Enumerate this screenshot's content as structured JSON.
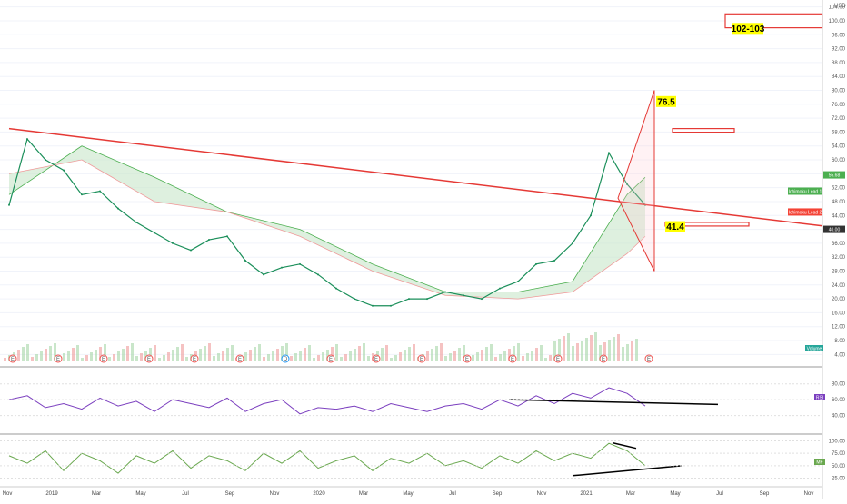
{
  "chart_data": {
    "type": "line",
    "currency": "USD",
    "price_axis": {
      "ticks": [
        "104.00",
        "100.00",
        "96.00",
        "92.00",
        "88.00",
        "84.00",
        "80.00",
        "76.00",
        "72.00",
        "68.00",
        "64.00",
        "60.00",
        "56.00",
        "52.00",
        "48.00",
        "44.00",
        "40.00",
        "36.00",
        "32.00",
        "28.00",
        "24.00",
        "20.00",
        "16.00",
        "12.00",
        "8.00",
        "4.00"
      ],
      "range": [
        2,
        106
      ]
    },
    "time_axis": [
      "Nov",
      "2019",
      "Mar",
      "May",
      "Jul",
      "Sep",
      "Nov",
      "2020",
      "Mar",
      "May",
      "Jul",
      "Sep",
      "Nov",
      "2021",
      "Mar",
      "May",
      "Jul",
      "Sep",
      "Nov"
    ],
    "price_series": {
      "name": "Price",
      "points": [
        [
          0,
          47
        ],
        [
          1,
          66
        ],
        [
          2,
          60
        ],
        [
          3,
          57
        ],
        [
          4,
          50
        ],
        [
          5,
          51
        ],
        [
          6,
          46
        ],
        [
          7,
          42
        ],
        [
          8,
          39
        ],
        [
          9,
          36
        ],
        [
          10,
          34
        ],
        [
          11,
          37
        ],
        [
          12,
          38
        ],
        [
          13,
          31
        ],
        [
          14,
          27
        ],
        [
          15,
          29
        ],
        [
          16,
          30
        ],
        [
          17,
          27
        ],
        [
          18,
          23
        ],
        [
          19,
          20
        ],
        [
          20,
          18
        ],
        [
          21,
          18
        ],
        [
          22,
          20
        ],
        [
          23,
          20
        ],
        [
          24,
          22
        ],
        [
          25,
          21
        ],
        [
          26,
          20
        ],
        [
          27,
          23
        ],
        [
          28,
          25
        ],
        [
          29,
          30
        ],
        [
          30,
          31
        ],
        [
          31,
          36
        ],
        [
          32,
          44
        ],
        [
          33,
          62
        ],
        [
          34,
          53
        ],
        [
          35,
          47
        ]
      ]
    },
    "trendline": {
      "name": "Trendline",
      "points": [
        [
          0,
          69
        ],
        [
          42,
          41
        ]
      ]
    },
    "cloud": {
      "lead1": [
        [
          0,
          50
        ],
        [
          4,
          64
        ],
        [
          8,
          55
        ],
        [
          12,
          45
        ],
        [
          16,
          40
        ],
        [
          20,
          30
        ],
        [
          24,
          22
        ],
        [
          28,
          22
        ],
        [
          31,
          25
        ],
        [
          34,
          50
        ],
        [
          35,
          55
        ]
      ],
      "lead2": [
        [
          0,
          56
        ],
        [
          4,
          60
        ],
        [
          8,
          48
        ],
        [
          12,
          45
        ],
        [
          16,
          38
        ],
        [
          20,
          28
        ],
        [
          24,
          21
        ],
        [
          28,
          20
        ],
        [
          31,
          22
        ],
        [
          34,
          33
        ],
        [
          35,
          38
        ]
      ]
    },
    "projection": {
      "apex": [
        33.5,
        49
      ],
      "top": [
        35.5,
        80
      ],
      "bottom": [
        35.5,
        28
      ]
    },
    "zones": [
      {
        "label": "102-103",
        "from": 102,
        "to": 98
      },
      {
        "label": "",
        "from": 69,
        "to": 68
      },
      {
        "label": "",
        "from": 42,
        "to": 41
      }
    ],
    "annotations": [
      {
        "label": "76.5",
        "x": 35.7,
        "y": 76
      },
      {
        "label": "41.4",
        "x": 36.2,
        "y": 40
      }
    ],
    "price_tags": [
      {
        "label": "55.68",
        "value": 55.68,
        "color": "#4caf50"
      },
      {
        "label": "40.00",
        "value": 40.0,
        "color": "#333333"
      }
    ],
    "legend_tags": [
      {
        "label": "Ichimoku Lead 1",
        "value": 51,
        "color": "#4caf50"
      },
      {
        "label": "Ichimoku Lead 2",
        "value": 45,
        "color": "#f44336"
      }
    ],
    "volume": {
      "label": "Volume",
      "color": "#26a69a"
    },
    "rsi": {
      "name": "RSI",
      "ticks": [
        "80.00",
        "60.00",
        "40.00"
      ],
      "range": [
        20,
        90
      ],
      "values": [
        60,
        65,
        50,
        55,
        48,
        62,
        52,
        58,
        45,
        60,
        55,
        50,
        62,
        45,
        55,
        60,
        42,
        50,
        48,
        52,
        45,
        55,
        50,
        45,
        52,
        55,
        48,
        60,
        52,
        65,
        55,
        68,
        62,
        75,
        68,
        52
      ],
      "support": {
        "from": [
          27.5,
          30
        ],
        "to": [
          39,
          54
        ]
      }
    },
    "mf": {
      "name": "MF",
      "ticks": [
        "100.00",
        "75.00",
        "50.00",
        "25.00"
      ],
      "range": [
        15,
        110
      ],
      "values": [
        70,
        55,
        80,
        40,
        75,
        60,
        35,
        70,
        55,
        80,
        45,
        70,
        60,
        40,
        75,
        55,
        80,
        45,
        60,
        70,
        40,
        65,
        55,
        75,
        50,
        60,
        45,
        70,
        55,
        80,
        60,
        75,
        65,
        95,
        80,
        50
      ],
      "support": {
        "from": [
          31,
          30
        ],
        "to": [
          37,
          50
        ]
      },
      "resistance": {
        "from": [
          33.2,
          96
        ],
        "to": [
          34.5,
          85
        ]
      }
    },
    "event_markers": [
      "E",
      "E",
      "E",
      "E",
      "E",
      "E",
      "D",
      "E",
      "E",
      "E",
      "E",
      "E",
      "E",
      "E",
      "E"
    ]
  },
  "colors": {
    "price": "#1b8f5a",
    "trendline": "#e53935",
    "cloud_bull": "#c8e6c9",
    "cloud_bear": "#ffcdd2",
    "rsi": "#7b3fbf",
    "mf": "#6aa84f",
    "zone": "#e53935",
    "label_bg": "#ffff00"
  }
}
